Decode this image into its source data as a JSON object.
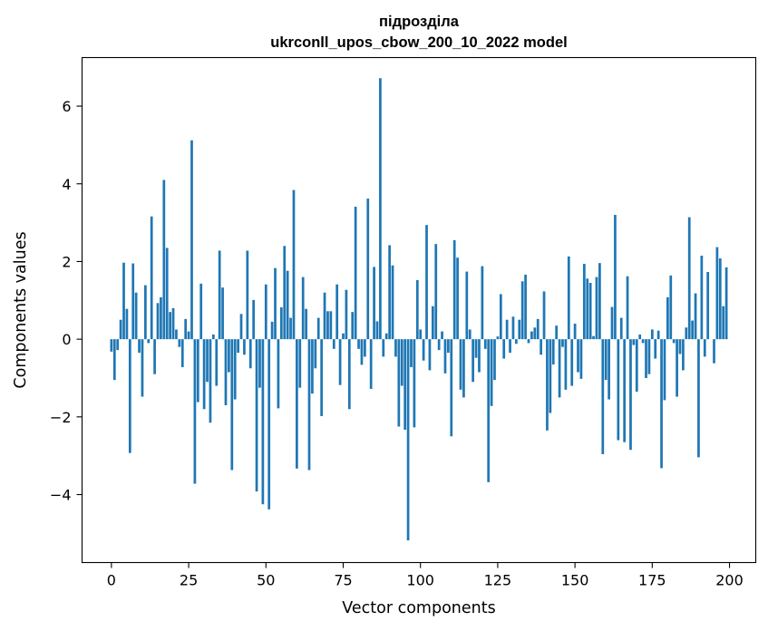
{
  "chart_data": {
    "type": "bar",
    "title_line1": "підрозділа",
    "title_line2": "ukrconll_upos_cbow_200_10_2022 model",
    "xlabel": "Vector components",
    "ylabel": "Components values",
    "xlim": [
      -9.5,
      208.5
    ],
    "ylim": [
      -5.75,
      7.25
    ],
    "xticks": [
      0,
      25,
      50,
      75,
      100,
      125,
      150,
      175,
      200
    ],
    "yticks": [
      -4,
      -2,
      0,
      2,
      4,
      6
    ],
    "ytick_labels": [
      "−4",
      "−2",
      "0",
      "2",
      "4",
      "6"
    ],
    "grid": false,
    "bar_color": "#1f77b4",
    "values": [
      -0.32,
      -1.05,
      -0.28,
      0.5,
      1.97,
      0.78,
      -2.93,
      1.95,
      1.2,
      -0.35,
      -1.48,
      1.39,
      -0.1,
      3.16,
      -0.9,
      0.93,
      1.08,
      4.1,
      2.35,
      0.7,
      0.8,
      0.25,
      -0.2,
      -0.72,
      0.52,
      0.2,
      5.12,
      -3.72,
      -1.62,
      1.43,
      -1.8,
      -1.1,
      -2.15,
      0.12,
      -1.2,
      2.28,
      1.33,
      -1.7,
      -0.85,
      -3.37,
      -1.55,
      -0.35,
      0.65,
      -0.4,
      2.28,
      -0.75,
      1.01,
      -3.92,
      -1.25,
      -4.25,
      1.41,
      -4.38,
      0.45,
      1.83,
      -1.78,
      0.82,
      2.4,
      1.76,
      0.55,
      3.84,
      -3.33,
      -1.25,
      1.6,
      0.78,
      -3.37,
      -1.4,
      -0.75,
      0.55,
      -1.98,
      1.2,
      0.72,
      0.72,
      -0.25,
      1.41,
      -1.18,
      0.15,
      1.27,
      -1.8,
      0.7,
      3.41,
      -0.25,
      -0.66,
      -0.45,
      3.62,
      -1.28,
      1.86,
      0.46,
      6.72,
      -0.45,
      0.15,
      2.42,
      1.9,
      -0.45,
      -2.25,
      -1.2,
      -2.33,
      -5.18,
      -0.72,
      -2.27,
      1.52,
      0.25,
      -0.55,
      2.94,
      -0.8,
      0.85,
      2.45,
      -0.28,
      0.2,
      -0.88,
      -0.35,
      -2.5,
      2.55,
      2.1,
      -1.3,
      -1.5,
      1.74,
      0.25,
      -1.1,
      -0.48,
      -0.85,
      1.88,
      -0.25,
      -3.68,
      -1.72,
      -1.05,
      0.07,
      1.16,
      -0.5,
      0.5,
      -0.35,
      0.58,
      -0.12,
      0.5,
      1.49,
      1.66,
      -0.1,
      0.2,
      0.3,
      0.52,
      -0.4,
      1.23,
      -2.35,
      -1.9,
      -0.65,
      0.35,
      -1.5,
      -0.2,
      -1.3,
      2.13,
      -1.2,
      0.4,
      -0.85,
      -1.02,
      1.94,
      1.56,
      1.45,
      0.08,
      1.6,
      1.96,
      -2.96,
      -1.05,
      -1.55,
      0.83,
      3.2,
      -2.6,
      0.55,
      -2.65,
      1.62,
      -2.85,
      -0.15,
      -1.35,
      0.12,
      -0.1,
      -1.0,
      -0.9,
      0.25,
      -0.5,
      0.22,
      -3.32,
      -1.57,
      1.08,
      1.64,
      -0.1,
      -1.48,
      -0.38,
      -0.8,
      0.3,
      3.14,
      0.48,
      1.18,
      -3.04,
      2.15,
      -0.45,
      1.73,
      0.0,
      -0.62,
      2.37,
      2.08,
      0.85,
      1.85
    ]
  }
}
